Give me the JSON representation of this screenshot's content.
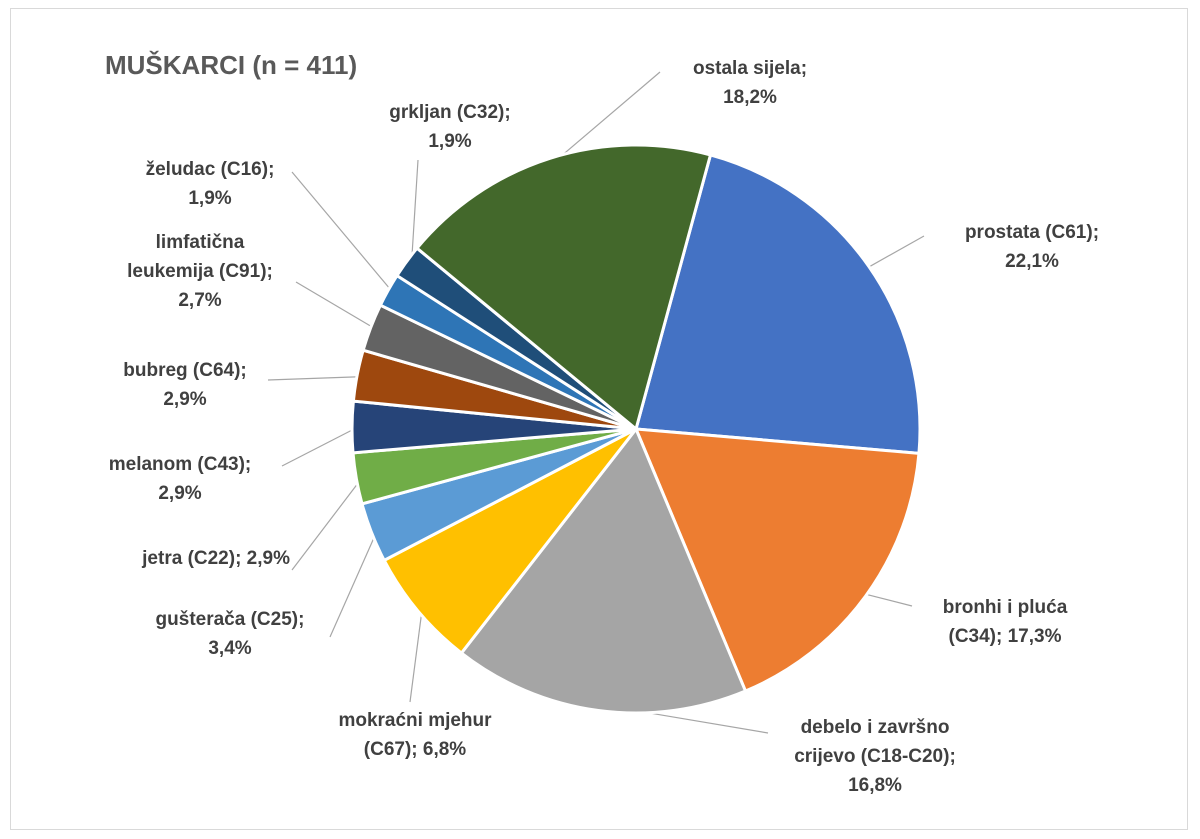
{
  "chart_data": {
    "type": "pie",
    "title": "MUŠKARCI (n = 411)",
    "slices": [
      {
        "category": "prostata (C61)",
        "value": 22.1,
        "color": "#4472c4",
        "label_lines": [
          "prostata (C61);",
          "22,1%"
        ]
      },
      {
        "category": "bronhi i pluća (C34)",
        "value": 17.3,
        "color": "#ed7d31",
        "label_lines": [
          "bronhi i pluća",
          "(C34); 17,3%"
        ]
      },
      {
        "category": "debelo i završno crijevo (C18-C20)",
        "value": 16.8,
        "color": "#a5a5a5",
        "label_lines": [
          "debelo i završno",
          "crijevo (C18-C20);",
          "16,8%"
        ]
      },
      {
        "category": "mokraćni mjehur (C67)",
        "value": 6.8,
        "color": "#ffc000",
        "label_lines": [
          "mokraćni mjehur",
          "(C67); 6,8%"
        ]
      },
      {
        "category": "gušterača (C25)",
        "value": 3.4,
        "color": "#5b9bd5",
        "label_lines": [
          "gušterača (C25);",
          "3,4%"
        ]
      },
      {
        "category": "jetra (C22)",
        "value": 2.9,
        "color": "#70ad47",
        "label_lines": [
          "jetra (C22); 2,9%"
        ]
      },
      {
        "category": "melanom (C43)",
        "value": 2.9,
        "color": "#264478",
        "label_lines": [
          "melanom (C43);",
          "2,9%"
        ]
      },
      {
        "category": "bubreg (C64)",
        "value": 2.9,
        "color": "#9e480e",
        "label_lines": [
          "bubreg (C64);",
          "2,9%"
        ]
      },
      {
        "category": "limfatična leukemija (C91)",
        "value": 2.7,
        "color": "#636363",
        "label_lines": [
          "limfatična",
          "leukemija (C91);",
          "2,7%"
        ]
      },
      {
        "category": "želudac (C16)",
        "value": 1.9,
        "color": "#2e75b6",
        "label_lines": [
          "želudac (C16);",
          "1,9%"
        ]
      },
      {
        "category": "grkljan (C32)",
        "value": 1.9,
        "color": "#1f4e79",
        "label_lines": [
          "grkljan (C32);",
          "1,9%"
        ]
      },
      {
        "category": "ostala sijela",
        "value": 18.2,
        "color": "#43682b",
        "label_lines": [
          "ostala sijela;",
          "18,2%"
        ]
      }
    ]
  }
}
